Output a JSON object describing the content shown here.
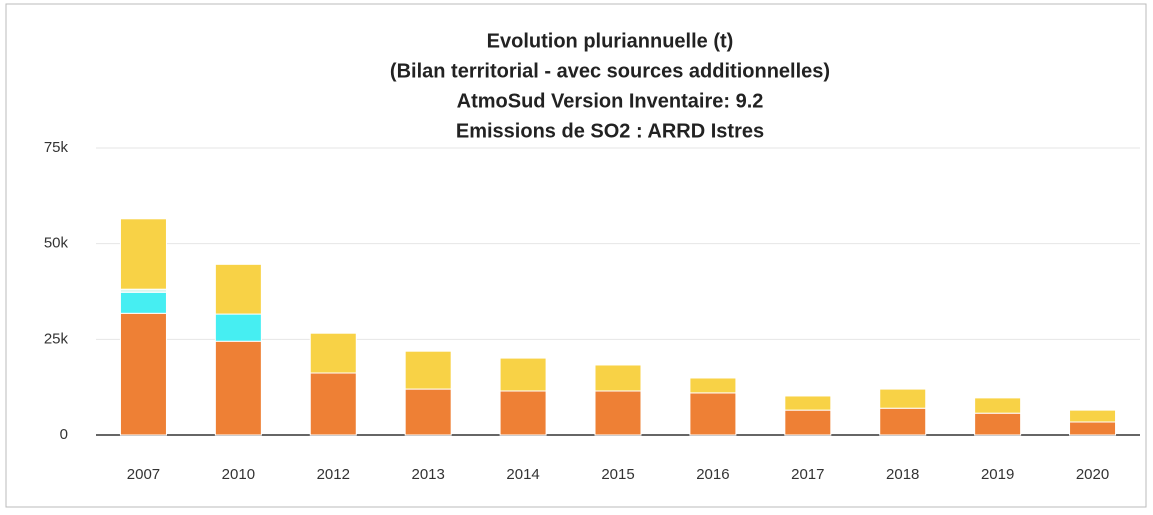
{
  "chart_data": {
    "type": "stacked_bar",
    "title": [
      "Evolution pluriannuelle (t)",
      "(Bilan territorial - avec sources additionnelles)",
      "AtmoSud Version Inventaire: 9.2",
      "Emissions de SO2 : ARRD Istres"
    ],
    "categories": [
      "2007",
      "2010",
      "2012",
      "2013",
      "2014",
      "2015",
      "2016",
      "2017",
      "2018",
      "2019",
      "2020"
    ],
    "series": [
      {
        "color": "#ee8035",
        "values": [
          31800,
          24500,
          16200,
          12000,
          11500,
          11500,
          11000,
          6500,
          7000,
          5700,
          3400
        ]
      },
      {
        "color": "#46eef2",
        "values": [
          5500,
          7100,
          0,
          0,
          0,
          0,
          0,
          0,
          0,
          0,
          0
        ]
      },
      {
        "color": "#d8f6ee",
        "values": [
          800,
          0,
          0,
          0,
          0,
          0,
          0,
          0,
          0,
          0,
          0
        ]
      },
      {
        "color": "#f8d246",
        "values": [
          18400,
          13000,
          10400,
          9900,
          8600,
          6800,
          3900,
          3700,
          5000,
          4000,
          3100
        ]
      }
    ],
    "ylim": [
      0,
      75000
    ],
    "yticks": [
      0,
      {
        "value": 25000,
        "label": "25k"
      },
      {
        "value": 50000,
        "label": "50k"
      },
      {
        "value": 75000,
        "label": "75k"
      }
    ],
    "grid": true
  }
}
